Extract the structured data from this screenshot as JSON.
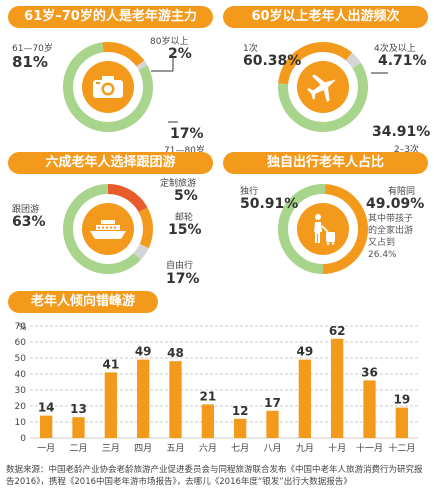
{
  "colors": {
    "orange": "#f39a1c",
    "green": "#a9d48c",
    "gray": "#d5d5d5",
    "red": "#e85b2a"
  },
  "panels": {
    "age": {
      "title": "61岁–70岁的人是老年游主力",
      "icon": "camera-icon",
      "label_61_70": "61—70岁",
      "pct_61_70": "81%",
      "label_80plus": "80岁以上",
      "pct_80plus": "2%",
      "pct_71_80": "17%",
      "label_71_80": "71—80岁"
    },
    "frequency": {
      "title": "60岁以上老年人出游频次",
      "icon": "airplane-icon",
      "label_1": "1次",
      "pct_1": "60.38%",
      "label_4plus": "4次及以上",
      "pct_4plus": "4.71%",
      "pct_2_3": "34.91%",
      "label_2_3": "2–3次"
    },
    "group": {
      "title": "六成老年人选择跟团游",
      "icon": "cruise-ship-icon",
      "label_group": "跟团游",
      "pct_group": "63%",
      "label_custom": "定制旅游",
      "pct_custom": "5%",
      "label_cruise": "邮轮",
      "pct_cruise": "15%",
      "label_self": "自由行",
      "pct_self": "17%"
    },
    "solo": {
      "title": "独自出行老年人占比",
      "icon": "traveler-luggage-icon",
      "label_solo": "独行",
      "pct_solo": "50.91%",
      "label_companion": "有陪同",
      "pct_companion": "49.09%",
      "note_1": "其中带孩子",
      "note_2": "的全家出游",
      "note_3": "又占到",
      "note_4": "26.4%"
    }
  },
  "chart_data": [
    {
      "type": "pie",
      "title": "61岁–70岁的人是老年游主力",
      "labels": [
        "61—70岁",
        "71—80岁",
        "80岁以上"
      ],
      "values": [
        81,
        17,
        2
      ]
    },
    {
      "type": "pie",
      "title": "60岁以上老年人出游频次",
      "labels": [
        "1次",
        "2–3次",
        "4次及以上"
      ],
      "values": [
        60.38,
        34.91,
        4.71
      ]
    },
    {
      "type": "pie",
      "title": "六成老年人选择跟团游",
      "labels": [
        "跟团游",
        "自由行",
        "邮轮",
        "定制旅游"
      ],
      "values": [
        63,
        17,
        15,
        5
      ]
    },
    {
      "type": "pie",
      "title": "独自出行老年人占比",
      "labels": [
        "独行",
        "有陪同"
      ],
      "values": [
        50.91,
        49.09
      ]
    },
    {
      "type": "bar",
      "title": "老年人倾向错峰游",
      "ylabel": "%",
      "categories": [
        "一月",
        "二月",
        "三月",
        "四月",
        "五月",
        "六月",
        "七月",
        "八月",
        "九月",
        "十月",
        "十一月",
        "十二月"
      ],
      "values": [
        14,
        13,
        41,
        49,
        48,
        21,
        12,
        17,
        49,
        62,
        36,
        19
      ],
      "yticks": [
        0,
        10,
        20,
        30,
        40,
        50,
        60,
        70
      ],
      "ylim": [
        0,
        70
      ],
      "grid": true
    }
  ],
  "footer": {
    "text": "数据来源：中国老龄产业协会老龄旅游产业促进委员会与同程旅游联合发布《中国中老年人旅游消费行为研究报告2016》，携程《2016中国老年游市场报告》，去哪儿《2016年度“银发”出行大数据报告》"
  }
}
